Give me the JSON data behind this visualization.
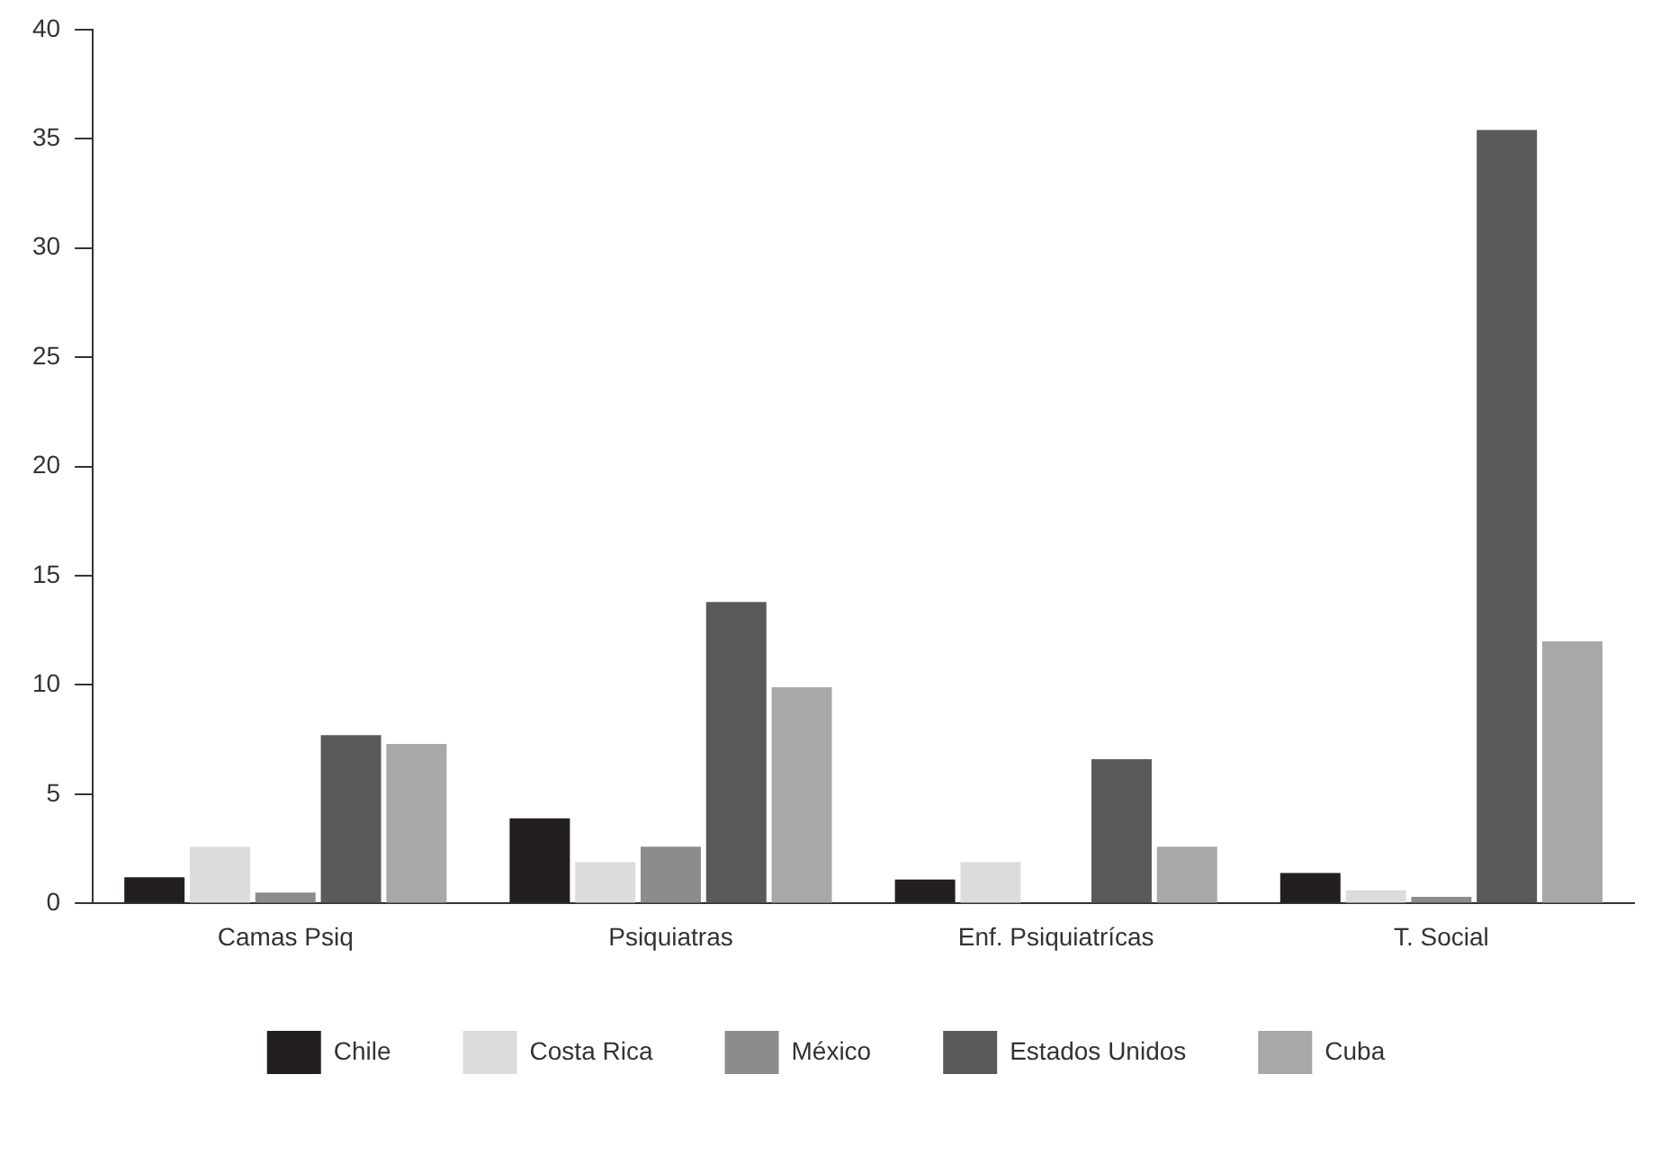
{
  "chart_data": {
    "type": "bar",
    "categories": [
      "Camas Psiq",
      "Psiquiatras",
      "Enf. Psiquiatrícas",
      "T. Social"
    ],
    "series": [
      {
        "name": "Chile",
        "color": "#231f20",
        "values": [
          1.2,
          3.9,
          1.1,
          1.4
        ]
      },
      {
        "name": "Costa Rica",
        "color": "#dcdcdc",
        "values": [
          2.6,
          1.9,
          1.9,
          0.6
        ]
      },
      {
        "name": "México",
        "color": "#8c8c8c",
        "values": [
          0.5,
          2.6,
          0,
          0.3
        ]
      },
      {
        "name": "Estados Unidos",
        "color": "#5a5a5a",
        "values": [
          7.7,
          13.8,
          6.6,
          35.4
        ]
      },
      {
        "name": "Cuba",
        "color": "#a8a8a8",
        "values": [
          7.3,
          9.9,
          2.6,
          12.0
        ]
      }
    ],
    "ylim": [
      0,
      40
    ],
    "yticks": [
      0,
      5,
      10,
      15,
      20,
      25,
      30,
      35,
      40
    ],
    "grid": false,
    "legend": "bottom"
  }
}
